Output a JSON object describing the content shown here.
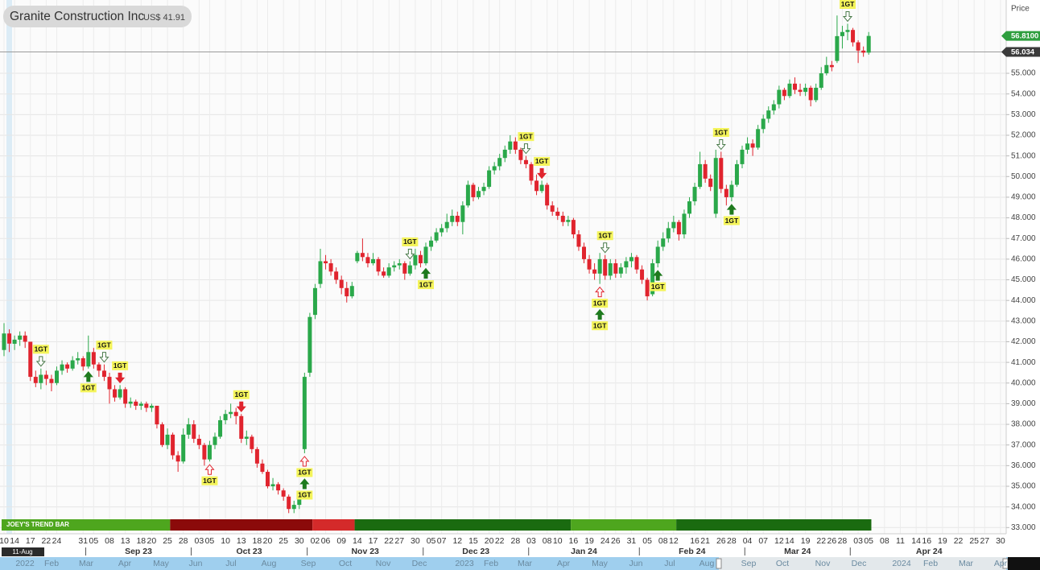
{
  "chart_data": {
    "type": "candlestick",
    "title": "Granite Construction Inc",
    "subtitle": "US$ 41.91",
    "y_axis_title": "Price",
    "crosshair_label": "11-Aug",
    "ylim": [
      32.7,
      58.55
    ],
    "yticks": [
      {
        "value": 33,
        "label": "33.000"
      },
      {
        "value": 34,
        "label": "34.000"
      },
      {
        "value": 35,
        "label": "35.000"
      },
      {
        "value": 36,
        "label": "36.000"
      },
      {
        "value": 37,
        "label": "37.000"
      },
      {
        "value": 38,
        "label": "38.000"
      },
      {
        "value": 39,
        "label": "39.000"
      },
      {
        "value": 40,
        "label": "40.000"
      },
      {
        "value": 41,
        "label": "41.000"
      },
      {
        "value": 42,
        "label": "42.000"
      },
      {
        "value": 43,
        "label": "43.000"
      },
      {
        "value": 44,
        "label": "44.000"
      },
      {
        "value": 45,
        "label": "45.000"
      },
      {
        "value": 46,
        "label": "46.000"
      },
      {
        "value": 47,
        "label": "47.000"
      },
      {
        "value": 48,
        "label": "48.000"
      },
      {
        "value": 49,
        "label": "49.000"
      },
      {
        "value": 50,
        "label": "50.000"
      },
      {
        "value": 51,
        "label": "51.000"
      },
      {
        "value": 52,
        "label": "52.000"
      },
      {
        "value": 53,
        "label": "53.000"
      },
      {
        "value": 54,
        "label": "54.000"
      },
      {
        "value": 55,
        "label": "55.000"
      }
    ],
    "grid": true,
    "up_color": "#2aa84a",
    "down_color": "#e0242e",
    "last_price": {
      "value": 56.81,
      "label": "56.8100",
      "color": "#2e9e3e"
    },
    "reference_line": {
      "value": 56.034,
      "label": "56.034",
      "color": "#3a3a3a"
    },
    "categories": [
      "10",
      null,
      "14",
      null,
      null,
      "17",
      null,
      null,
      "22",
      null,
      "24",
      null,
      null,
      null,
      null,
      "31",
      null,
      "05",
      null,
      null,
      "08",
      null,
      null,
      "13",
      null,
      null,
      "18",
      null,
      "20",
      null,
      null,
      "25",
      null,
      null,
      "28",
      null,
      null,
      "03",
      null,
      "05",
      null,
      null,
      "10",
      null,
      null,
      "13",
      null,
      null,
      "18",
      null,
      "20",
      null,
      null,
      "25",
      null,
      null,
      "30",
      null,
      null,
      "02",
      null,
      "06",
      null,
      null,
      "09",
      null,
      null,
      "14",
      null,
      null,
      "17",
      null,
      null,
      "22",
      null,
      "27",
      null,
      null,
      "30",
      null,
      null,
      "05",
      null,
      "07",
      null,
      null,
      "12",
      null,
      null,
      "15",
      null,
      null,
      "20",
      null,
      "22",
      null,
      null,
      "28",
      null,
      null,
      "03",
      null,
      null,
      "08",
      null,
      "10",
      null,
      null,
      "16",
      null,
      null,
      "19",
      null,
      null,
      "24",
      null,
      "26",
      null,
      null,
      "31",
      null,
      null,
      "05",
      null,
      null,
      "08",
      null,
      "12",
      null,
      null,
      null,
      "16",
      null,
      "21",
      null,
      null,
      "26",
      null,
      "28",
      null,
      null,
      "04",
      null,
      null,
      "07",
      null,
      null,
      "12",
      null,
      "14",
      null,
      null,
      "19",
      null,
      null,
      "22",
      null,
      "26",
      null,
      "28",
      null,
      null,
      "03",
      null,
      "05"
    ],
    "future_categories": [
      "08",
      "11",
      "14",
      "16",
      "19",
      "22",
      "25",
      "27",
      "30"
    ],
    "months": [
      {
        "label": "Sep 23",
        "start": 16
      },
      {
        "label": "Oct 23",
        "start": 36
      },
      {
        "label": "Nov 23",
        "start": 58
      },
      {
        "label": "Dec 23",
        "start": 80
      },
      {
        "label": "Jan 24",
        "start": 100
      },
      {
        "label": "Feb 24",
        "start": 121
      },
      {
        "label": "Mar 24",
        "start": 141
      },
      {
        "label": "Apr 24",
        "start": 161
      }
    ],
    "navigator_labels": [
      "2022",
      "Feb",
      "Mar",
      "Apr",
      "May",
      "Jun",
      "Jul",
      "Aug",
      "Sep",
      "Oct",
      "Nov",
      "Dec",
      "2023",
      "Feb",
      "Mar",
      "Apr",
      "May",
      "Jun",
      "Jul",
      "Aug",
      "Sep",
      "Oct",
      "Nov",
      "Dec",
      "2024",
      "Feb",
      "Mar",
      "Apr"
    ],
    "candles": [
      [
        41.6,
        42.9,
        41.3,
        42.4
      ],
      [
        42.4,
        42.6,
        41.5,
        41.91
      ],
      [
        41.9,
        42.3,
        41.6,
        42.1
      ],
      [
        42.1,
        42.5,
        41.8,
        42.3
      ],
      [
        42.3,
        42.5,
        41.7,
        42.0
      ],
      [
        42.0,
        42.0,
        40.1,
        40.3
      ],
      [
        40.3,
        40.6,
        39.8,
        40.0
      ],
      [
        40.0,
        40.7,
        39.7,
        40.4
      ],
      [
        40.4,
        40.6,
        39.9,
        40.2
      ],
      [
        40.2,
        40.4,
        39.6,
        40.0
      ],
      [
        40.0,
        40.8,
        39.9,
        40.6
      ],
      [
        40.6,
        41.1,
        40.4,
        40.9
      ],
      [
        40.9,
        41.0,
        40.5,
        40.7
      ],
      [
        40.7,
        41.3,
        40.6,
        41.1
      ],
      [
        41.1,
        41.5,
        40.9,
        41.2
      ],
      [
        41.2,
        41.3,
        40.6,
        40.8
      ],
      [
        40.8,
        42.3,
        40.7,
        41.5
      ],
      [
        41.5,
        41.7,
        40.7,
        40.9
      ],
      [
        40.9,
        41.0,
        40.3,
        40.6
      ],
      [
        40.6,
        40.9,
        40.1,
        40.3
      ],
      [
        40.3,
        40.5,
        39.0,
        39.7
      ],
      [
        39.7,
        39.9,
        39.1,
        39.3
      ],
      [
        39.3,
        39.9,
        39.2,
        39.7
      ],
      [
        39.7,
        39.8,
        38.8,
        39.0
      ],
      [
        39.0,
        39.3,
        38.8,
        39.1
      ],
      [
        39.1,
        39.2,
        38.7,
        38.9
      ],
      [
        38.9,
        39.1,
        38.7,
        39.0
      ],
      [
        39.0,
        39.1,
        38.6,
        38.8
      ],
      [
        38.8,
        39.0,
        38.6,
        38.9
      ],
      [
        38.9,
        38.9,
        37.8,
        38.0
      ],
      [
        38.0,
        38.1,
        36.9,
        37.0
      ],
      [
        37.0,
        37.8,
        36.8,
        37.5
      ],
      [
        37.5,
        37.6,
        36.3,
        36.5
      ],
      [
        36.5,
        36.7,
        35.7,
        36.2
      ],
      [
        36.2,
        37.8,
        36.1,
        37.5
      ],
      [
        37.5,
        38.3,
        37.3,
        38.0
      ],
      [
        38.0,
        38.2,
        37.1,
        37.3
      ],
      [
        37.3,
        37.5,
        36.8,
        37.0
      ],
      [
        37.0,
        37.1,
        36.0,
        36.3
      ],
      [
        36.3,
        37.2,
        36.2,
        37.0
      ],
      [
        37.0,
        37.6,
        36.8,
        37.4
      ],
      [
        37.4,
        38.4,
        37.3,
        38.2
      ],
      [
        38.2,
        38.7,
        38.0,
        38.5
      ],
      [
        38.5,
        39.0,
        38.3,
        38.6
      ],
      [
        38.6,
        38.8,
        38.0,
        38.4
      ],
      [
        38.4,
        38.5,
        37.1,
        37.3
      ],
      [
        37.3,
        37.7,
        37.0,
        37.4
      ],
      [
        37.4,
        37.5,
        36.6,
        36.8
      ],
      [
        36.8,
        36.9,
        35.9,
        36.1
      ],
      [
        36.1,
        36.3,
        35.6,
        35.7
      ],
      [
        35.7,
        35.8,
        34.9,
        35.0
      ],
      [
        35.0,
        35.4,
        34.8,
        35.1
      ],
      [
        35.1,
        35.2,
        34.6,
        34.8
      ],
      [
        34.8,
        34.9,
        34.3,
        34.5
      ],
      [
        34.5,
        34.6,
        33.7,
        33.9
      ],
      [
        33.9,
        34.3,
        33.7,
        34.1
      ],
      [
        34.1,
        34.6,
        33.9,
        34.4
      ],
      [
        36.8,
        40.5,
        36.6,
        40.3
      ],
      [
        40.5,
        43.4,
        40.3,
        43.2
      ],
      [
        43.3,
        44.8,
        43.1,
        44.6
      ],
      [
        44.8,
        46.5,
        44.6,
        45.9
      ],
      [
        45.9,
        46.2,
        45.5,
        45.8
      ],
      [
        45.8,
        46.0,
        45.2,
        45.4
      ],
      [
        45.4,
        45.6,
        44.8,
        45.0
      ],
      [
        45.0,
        45.2,
        44.3,
        44.6
      ],
      [
        44.6,
        44.9,
        43.9,
        44.2
      ],
      [
        44.2,
        44.9,
        44.1,
        44.7
      ],
      [
        45.9,
        46.4,
        45.8,
        46.3
      ],
      [
        46.3,
        47.0,
        45.9,
        46.1
      ],
      [
        46.1,
        46.3,
        45.6,
        45.8
      ],
      [
        45.8,
        46.3,
        45.7,
        46.0
      ],
      [
        46.0,
        46.1,
        45.2,
        45.4
      ],
      [
        45.4,
        45.6,
        45.1,
        45.2
      ],
      [
        45.2,
        45.8,
        45.1,
        45.6
      ],
      [
        45.6,
        45.9,
        45.4,
        45.7
      ],
      [
        45.7,
        46.0,
        45.5,
        45.8
      ],
      [
        45.8,
        45.9,
        45.0,
        45.3
      ],
      [
        45.3,
        45.9,
        45.2,
        45.7
      ],
      [
        45.7,
        46.5,
        45.5,
        46.2
      ],
      [
        46.2,
        46.4,
        45.6,
        45.8
      ],
      [
        45.8,
        46.8,
        45.7,
        46.6
      ],
      [
        46.6,
        47.1,
        46.4,
        46.9
      ],
      [
        46.9,
        47.5,
        46.8,
        47.3
      ],
      [
        47.3,
        47.7,
        47.1,
        47.5
      ],
      [
        47.5,
        48.2,
        47.3,
        47.8
      ],
      [
        47.8,
        48.4,
        47.6,
        48.1
      ],
      [
        48.1,
        48.3,
        47.6,
        47.8
      ],
      [
        47.8,
        48.8,
        47.2,
        48.6
      ],
      [
        48.6,
        49.8,
        48.5,
        49.6
      ],
      [
        49.6,
        49.7,
        48.8,
        49.0
      ],
      [
        49.0,
        49.5,
        48.9,
        49.3
      ],
      [
        49.3,
        49.7,
        49.1,
        49.5
      ],
      [
        49.5,
        50.5,
        49.4,
        50.3
      ],
      [
        50.3,
        50.7,
        50.1,
        50.5
      ],
      [
        50.5,
        51.1,
        50.3,
        50.9
      ],
      [
        50.9,
        51.5,
        50.7,
        51.3
      ],
      [
        51.3,
        52.0,
        51.1,
        51.7
      ],
      [
        51.7,
        51.9,
        51.1,
        51.3
      ],
      [
        51.3,
        51.4,
        50.6,
        50.8
      ],
      [
        50.8,
        51.0,
        50.4,
        50.6
      ],
      [
        50.6,
        50.7,
        49.6,
        49.8
      ],
      [
        49.8,
        50.1,
        49.1,
        49.3
      ],
      [
        49.3,
        49.8,
        49.2,
        49.6
      ],
      [
        49.6,
        49.7,
        48.4,
        48.6
      ],
      [
        48.6,
        48.8,
        48.1,
        48.3
      ],
      [
        48.3,
        48.5,
        47.9,
        48.1
      ],
      [
        48.1,
        48.3,
        47.6,
        47.8
      ],
      [
        47.8,
        48.1,
        47.6,
        47.9
      ],
      [
        47.9,
        48.0,
        47.0,
        47.2
      ],
      [
        47.2,
        47.4,
        46.4,
        46.6
      ],
      [
        46.6,
        46.8,
        45.8,
        46.0
      ],
      [
        46.0,
        46.2,
        45.3,
        45.5
      ],
      [
        45.5,
        45.8,
        45.0,
        45.3
      ],
      [
        45.3,
        46.3,
        44.8,
        46.0
      ],
      [
        46.0,
        46.2,
        45.0,
        45.2
      ],
      [
        45.2,
        46.0,
        45.0,
        45.8
      ],
      [
        45.8,
        46.0,
        45.1,
        45.3
      ],
      [
        45.3,
        45.8,
        45.1,
        45.6
      ],
      [
        45.6,
        46.1,
        45.3,
        45.9
      ],
      [
        45.9,
        46.3,
        45.6,
        46.1
      ],
      [
        46.1,
        46.2,
        45.3,
        45.5
      ],
      [
        45.5,
        45.7,
        44.8,
        45.0
      ],
      [
        45.0,
        45.1,
        44.0,
        44.2
      ],
      [
        44.3,
        46.0,
        44.2,
        45.8
      ],
      [
        45.8,
        46.9,
        45.6,
        46.6
      ],
      [
        46.6,
        47.3,
        46.4,
        47.0
      ],
      [
        47.0,
        47.8,
        46.8,
        47.5
      ],
      [
        47.5,
        48.1,
        47.3,
        47.8
      ],
      [
        47.8,
        47.9,
        46.9,
        47.2
      ],
      [
        47.2,
        48.4,
        47.0,
        48.2
      ],
      [
        48.2,
        49.0,
        48.0,
        48.8
      ],
      [
        48.8,
        49.7,
        48.6,
        49.5
      ],
      [
        49.5,
        51.2,
        49.4,
        50.6
      ],
      [
        50.6,
        50.8,
        49.7,
        49.9
      ],
      [
        49.9,
        50.1,
        49.3,
        49.5
      ],
      [
        48.2,
        51.3,
        48.0,
        50.9
      ],
      [
        50.9,
        51.2,
        49.2,
        49.4
      ],
      [
        49.4,
        49.6,
        48.6,
        49.0
      ],
      [
        49.0,
        49.8,
        48.8,
        49.6
      ],
      [
        49.6,
        50.8,
        49.5,
        50.6
      ],
      [
        50.6,
        51.5,
        50.4,
        51.3
      ],
      [
        51.3,
        51.9,
        51.1,
        51.6
      ],
      [
        51.6,
        51.8,
        51.0,
        51.4
      ],
      [
        51.4,
        52.5,
        51.3,
        52.3
      ],
      [
        52.3,
        53.0,
        52.1,
        52.8
      ],
      [
        52.8,
        53.4,
        52.6,
        53.2
      ],
      [
        53.2,
        53.7,
        53.0,
        53.5
      ],
      [
        53.5,
        54.4,
        53.3,
        54.2
      ],
      [
        54.2,
        54.3,
        53.7,
        53.9
      ],
      [
        53.9,
        54.7,
        53.8,
        54.5
      ],
      [
        54.5,
        54.8,
        54.0,
        54.2
      ],
      [
        54.2,
        54.5,
        53.9,
        54.1
      ],
      [
        54.1,
        54.5,
        53.9,
        54.3
      ],
      [
        54.3,
        54.4,
        53.4,
        53.7
      ],
      [
        53.7,
        54.5,
        53.6,
        54.3
      ],
      [
        54.3,
        55.3,
        54.2,
        55.0
      ],
      [
        55.0,
        55.8,
        54.9,
        55.4
      ],
      [
        55.4,
        55.6,
        55.1,
        55.3
      ],
      [
        55.6,
        57.8,
        55.5,
        56.8
      ],
      [
        56.8,
        57.3,
        56.2,
        57.0
      ],
      [
        57.0,
        57.4,
        56.6,
        57.1
      ],
      [
        57.1,
        57.2,
        56.3,
        56.5
      ],
      [
        56.5,
        56.6,
        55.5,
        56.1
      ],
      [
        56.1,
        56.3,
        55.8,
        56.0
      ],
      [
        56.0,
        57.0,
        55.9,
        56.81
      ]
    ],
    "signals": [
      {
        "label": "1GT",
        "index": 7,
        "direction": "down",
        "style": "hollow"
      },
      {
        "label": "1GT",
        "index": 16,
        "direction": "up",
        "style": "filled"
      },
      {
        "label": "1GT",
        "index": 19,
        "direction": "down",
        "style": "hollow"
      },
      {
        "label": "1GT",
        "index": 22,
        "direction": "down",
        "style": "filled"
      },
      {
        "label": "1GT",
        "index": 39,
        "direction": "up",
        "style": "hollow"
      },
      {
        "label": "1GT",
        "index": 45,
        "direction": "down",
        "style": "filled"
      },
      {
        "label": "1GT",
        "index": 57,
        "direction": "up",
        "style": "hollow"
      },
      {
        "label": "1GT",
        "index": 57,
        "direction": "up",
        "style": "filled"
      },
      {
        "label": "1GT",
        "index": 77,
        "direction": "down",
        "style": "hollow"
      },
      {
        "label": "1GT",
        "index": 80,
        "direction": "up",
        "style": "filled"
      },
      {
        "label": "1GT",
        "index": 99,
        "direction": "down",
        "style": "hollow"
      },
      {
        "label": "1GT",
        "index": 102,
        "direction": "down",
        "style": "filled"
      },
      {
        "label": "1GT",
        "index": 114,
        "direction": "down",
        "style": "hollow"
      },
      {
        "label": "1GT",
        "index": 113,
        "direction": "up",
        "style": "hollow"
      },
      {
        "label": "1GT",
        "index": 113,
        "direction": "up",
        "style": "filled"
      },
      {
        "label": "1GT",
        "index": 124,
        "direction": "up",
        "style": "filled"
      },
      {
        "label": "1GT",
        "index": 136,
        "direction": "down",
        "style": "hollow"
      },
      {
        "label": "1GT",
        "index": 138,
        "direction": "up",
        "style": "filled"
      },
      {
        "label": "1GT",
        "index": 160,
        "direction": "down",
        "style": "hollow"
      }
    ],
    "trend_bar": {
      "label": "JOEY'S TREND BAR",
      "segments": [
        {
          "from": 0,
          "to": 31,
          "color": "#4ea61e"
        },
        {
          "from": 32,
          "to": 58,
          "color": "#8b0a0a"
        },
        {
          "from": 59,
          "to": 66,
          "color": "#d42a2a"
        },
        {
          "from": 67,
          "to": 107,
          "color": "#1a6b10"
        },
        {
          "from": 108,
          "to": 127,
          "color": "#4ea61e"
        },
        {
          "from": 128,
          "to": 164,
          "color": "#1a6b10"
        }
      ]
    }
  }
}
